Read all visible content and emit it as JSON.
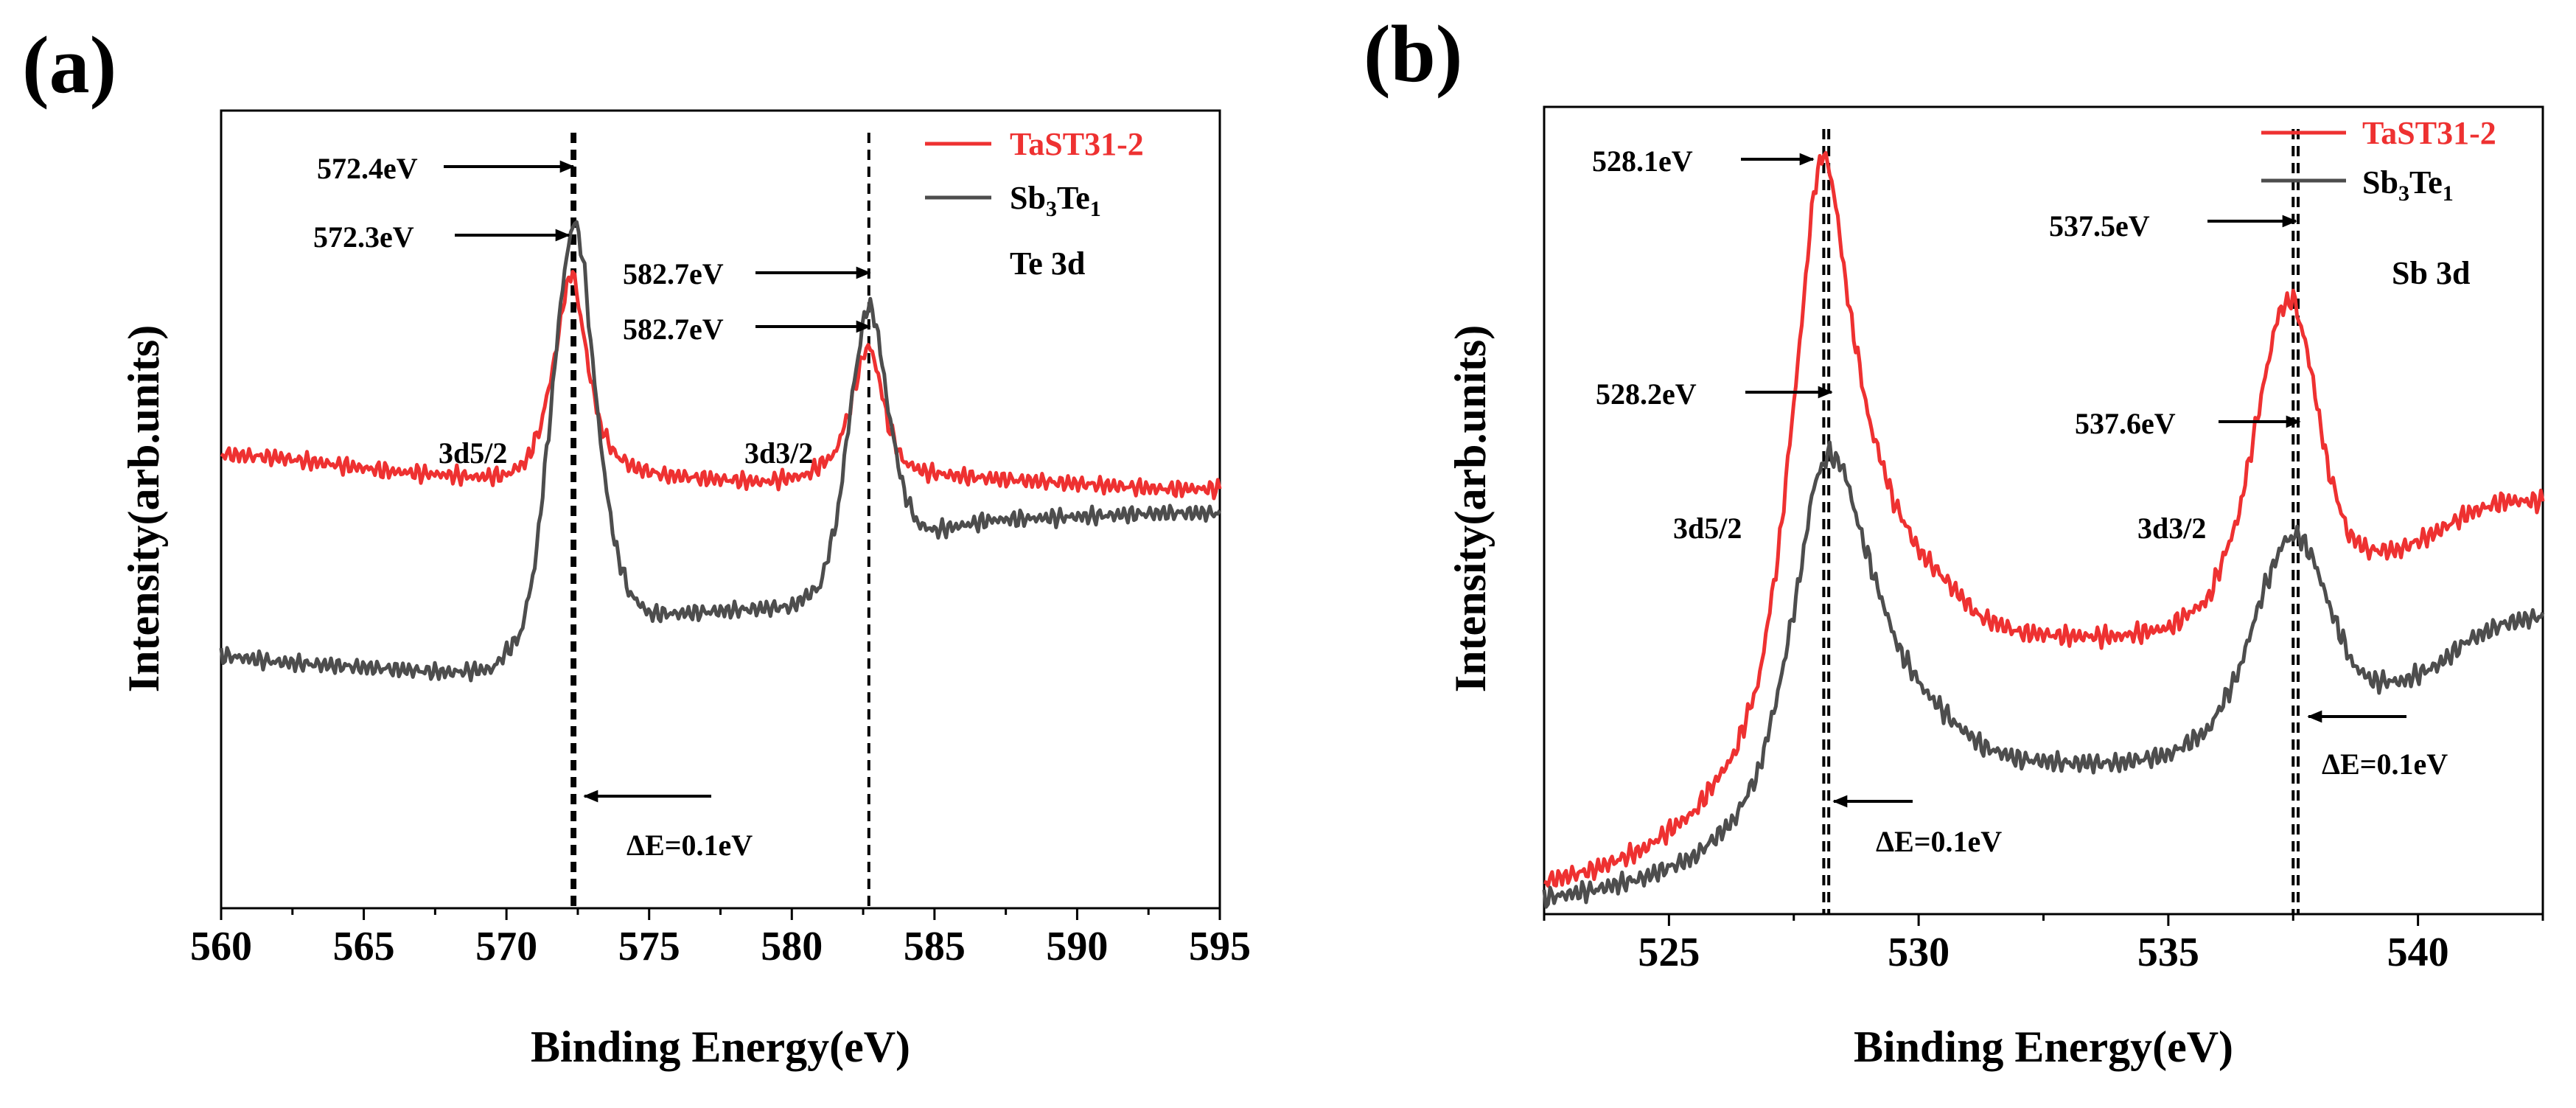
{
  "figure": {
    "colors": {
      "series_a": "#ee3131",
      "series_b": "#4d4d4d",
      "axis": "#000000"
    }
  },
  "chart_data": [
    {
      "type": "line",
      "panel_label": "(a)",
      "title": "",
      "xlabel": "Binding Energy(eV)",
      "ylabel": "Intensity(arb.units)",
      "xlim": [
        560,
        595
      ],
      "ylim": [
        0,
        1
      ],
      "xticks": [
        560,
        565,
        570,
        575,
        580,
        585,
        590,
        595
      ],
      "xtick_labels": [
        "560",
        "565",
        "570",
        "575",
        "580",
        "585",
        "590",
        "595"
      ],
      "legend": {
        "position": "top-right",
        "entries": [
          "TaST31-2",
          "Sb3Te1"
        ]
      },
      "legend_display": [
        {
          "main": "TaST31-2"
        },
        {
          "pre": "Sb",
          "sub1": "3",
          "mid": "Te",
          "sub2": "1"
        }
      ],
      "element_label": "Te 3d",
      "series": [
        {
          "name": "TaST31-2",
          "color": "#ee3131",
          "x": [
            560,
            562,
            564,
            566,
            568,
            569,
            570,
            570.7,
            571.2,
            571.7,
            572.0,
            572.3,
            572.6,
            572.9,
            573.3,
            573.8,
            574.5,
            575.5,
            577,
            579,
            580.5,
            581.5,
            582.0,
            582.4,
            582.7,
            583.0,
            583.4,
            583.9,
            584.6,
            585.5,
            587,
            589,
            591,
            593,
            595
          ],
          "y": [
            0.52,
            0.515,
            0.505,
            0.495,
            0.49,
            0.487,
            0.49,
            0.51,
            0.56,
            0.66,
            0.74,
            0.79,
            0.72,
            0.64,
            0.56,
            0.52,
            0.5,
            0.49,
            0.485,
            0.48,
            0.49,
            0.52,
            0.58,
            0.65,
            0.68,
            0.64,
            0.56,
            0.51,
            0.495,
            0.49,
            0.485,
            0.48,
            0.475,
            0.47,
            0.47
          ]
        },
        {
          "name": "Sb3Te1",
          "color": "#4d4d4d",
          "x": [
            560,
            562,
            564,
            566,
            568,
            569.5,
            570.5,
            571.0,
            571.5,
            571.9,
            572.2,
            572.4,
            572.7,
            573.0,
            573.4,
            573.8,
            574.3,
            575,
            576,
            578,
            580,
            581,
            581.6,
            582.1,
            582.5,
            582.7,
            583.0,
            583.4,
            583.9,
            584.4,
            585,
            587,
            590,
            593,
            595
          ],
          "y": [
            0.23,
            0.22,
            0.215,
            0.21,
            0.205,
            0.21,
            0.26,
            0.36,
            0.56,
            0.74,
            0.83,
            0.86,
            0.8,
            0.66,
            0.5,
            0.39,
            0.32,
            0.29,
            0.29,
            0.295,
            0.3,
            0.33,
            0.43,
            0.6,
            0.71,
            0.74,
            0.7,
            0.58,
            0.47,
            0.42,
            0.41,
            0.425,
            0.43,
            0.435,
            0.435
          ]
        }
      ],
      "annotations": [
        {
          "text": "572.4eV",
          "x": 572.4,
          "series": "Sb3Te1"
        },
        {
          "text": "572.3eV",
          "x": 572.3,
          "series": "TaST31-2"
        },
        {
          "text": "582.7eV",
          "x": 582.7,
          "series": "Sb3Te1"
        },
        {
          "text": "582.7eV",
          "x": 582.7,
          "series": "TaST31-2"
        },
        {
          "text": "3d5/2"
        },
        {
          "text": "3d3/2"
        },
        {
          "text": "ΔE=0.1eV"
        }
      ],
      "dashed_lines_x": [
        572.3,
        572.4,
        582.7
      ]
    },
    {
      "type": "line",
      "panel_label": "(b)",
      "title": "",
      "xlabel": "Binding Energy(eV)",
      "ylabel": "Intensity(arb.units)",
      "xlim": [
        522.5,
        542.5
      ],
      "ylim": [
        0,
        1
      ],
      "xticks": [
        525,
        530,
        535,
        540
      ],
      "xtick_labels": [
        "525",
        "530",
        "535",
        "540"
      ],
      "legend": {
        "position": "top-right",
        "entries": [
          "TaST31-2",
          "Sb3Te1"
        ]
      },
      "legend_display": [
        {
          "main": "TaST31-2"
        },
        {
          "pre": "Sb",
          "sub1": "3",
          "mid": "Te",
          "sub2": "1"
        }
      ],
      "element_label": "Sb 3d",
      "series": [
        {
          "name": "TaST31-2",
          "color": "#ee3131",
          "x": [
            522.5,
            523.5,
            524.5,
            525.5,
            526.3,
            526.8,
            527.2,
            527.6,
            527.9,
            528.1,
            528.3,
            528.6,
            529.0,
            529.5,
            530.0,
            530.6,
            531.2,
            532,
            533,
            534,
            535,
            535.8,
            536.4,
            536.9,
            537.2,
            537.5,
            537.8,
            538.2,
            538.6,
            539.0,
            539.6,
            540.3,
            541,
            541.7,
            542.5
          ],
          "y": [
            0.035,
            0.05,
            0.075,
            0.12,
            0.19,
            0.28,
            0.44,
            0.68,
            0.88,
            0.93,
            0.88,
            0.74,
            0.6,
            0.5,
            0.44,
            0.4,
            0.36,
            0.34,
            0.335,
            0.335,
            0.345,
            0.38,
            0.48,
            0.64,
            0.73,
            0.75,
            0.68,
            0.54,
            0.46,
            0.44,
            0.44,
            0.46,
            0.485,
            0.5,
            0.5
          ]
        },
        {
          "name": "Sb3Te1",
          "color": "#4d4d4d",
          "x": [
            522.5,
            523.5,
            524.5,
            525.5,
            526.3,
            526.8,
            527.2,
            527.6,
            527.9,
            528.2,
            528.5,
            528.8,
            529.2,
            529.6,
            530.1,
            530.7,
            531.3,
            532,
            533,
            534,
            535,
            535.8,
            536.4,
            536.9,
            537.3,
            537.6,
            537.9,
            538.3,
            538.7,
            539.1,
            539.7,
            540.4,
            541,
            541.7,
            542.5
          ],
          "y": [
            0.015,
            0.025,
            0.04,
            0.065,
            0.11,
            0.17,
            0.27,
            0.4,
            0.52,
            0.56,
            0.54,
            0.47,
            0.39,
            0.32,
            0.27,
            0.23,
            0.2,
            0.185,
            0.18,
            0.18,
            0.19,
            0.22,
            0.29,
            0.39,
            0.45,
            0.46,
            0.43,
            0.36,
            0.3,
            0.28,
            0.28,
            0.3,
            0.33,
            0.35,
            0.36
          ]
        }
      ],
      "annotations": [
        {
          "text": "528.1eV",
          "x": 528.1,
          "series": "TaST31-2"
        },
        {
          "text": "528.2eV",
          "x": 528.2,
          "series": "Sb3Te1"
        },
        {
          "text": "537.5eV",
          "x": 537.5,
          "series": "TaST31-2"
        },
        {
          "text": "537.6eV",
          "x": 537.6,
          "series": "Sb3Te1"
        },
        {
          "text": "3d5/2"
        },
        {
          "text": "3d3/2"
        },
        {
          "text": "ΔE=0.1eV"
        },
        {
          "text": "ΔE=0.1eV"
        }
      ],
      "dashed_lines_x": [
        528.1,
        528.2,
        537.5,
        537.6
      ]
    }
  ]
}
